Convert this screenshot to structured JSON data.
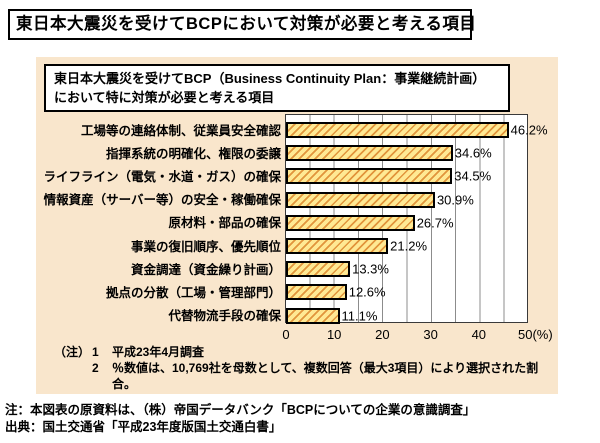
{
  "page": {
    "title_banner": "東日本大震災を受けてBCPにおいて対策が必要と考える項目",
    "footnote_line1": "注：本図表の原資料は、（株）帝国データバンク「BCPについての企業の意識調査」",
    "footnote_line2": "出典：国土交通省「平成23年度版国土交通白書」"
  },
  "panel": {
    "chart_title_line1": "東日本大震災を受けてBCP（Business Continuity Plan：事業継続計画）",
    "chart_title_line2": "において特に対策が必要と考える項目",
    "notes": {
      "prefix": "（注）",
      "items": [
        {
          "num": "1",
          "text": "平成23年4月調査"
        },
        {
          "num": "2",
          "text": "％数値は、10,769社を母数として、複数回答（最大3項目）により選択された割合。"
        }
      ]
    }
  },
  "chart_data": {
    "type": "bar",
    "orientation": "horizontal",
    "title": "東日本大震災を受けてBCP（Business Continuity Plan：事業継続計画）において特に対策が必要と考える項目",
    "categories": [
      "工場等の連絡体制、従業員安全確認",
      "指揮系統の明確化、権限の委譲",
      "ライフライン（電気・水道・ガス）の確保",
      "情報資産（サーバー等）の安全・稼働確保",
      "原材料・部品の確保",
      "事業の復旧順序、優先順位",
      "資金調達（資金繰り計画）",
      "拠点の分散（工場・管理部門）",
      "代替物流手段の確保"
    ],
    "values": [
      46.2,
      34.6,
      34.5,
      30.9,
      26.7,
      21.2,
      13.3,
      12.6,
      11.1
    ],
    "value_labels": [
      "46.2%",
      "34.6%",
      "34.5%",
      "30.9%",
      "26.7%",
      "21.2%",
      "13.3%",
      "12.6%",
      "11.1%"
    ],
    "xlabel": "",
    "ylabel": "",
    "xlim": [
      0,
      50
    ],
    "x_ticks": [
      {
        "pos": 0,
        "label": "0"
      },
      {
        "pos": 10,
        "label": "10"
      },
      {
        "pos": 20,
        "label": "20"
      },
      {
        "pos": 30,
        "label": "30"
      },
      {
        "pos": 40,
        "label": "40"
      },
      {
        "pos": 50,
        "label": "50(%)"
      }
    ],
    "gridline_interval": 5,
    "grid": true,
    "legend": false,
    "colors": {
      "panel_bg": "#f9e6cc",
      "plot_bg": "#ffffff",
      "bar_fill": "#ffe993",
      "bar_hatch": "#e1953c",
      "bar_border": "#000000",
      "gridline": "#8c8c8c"
    }
  }
}
